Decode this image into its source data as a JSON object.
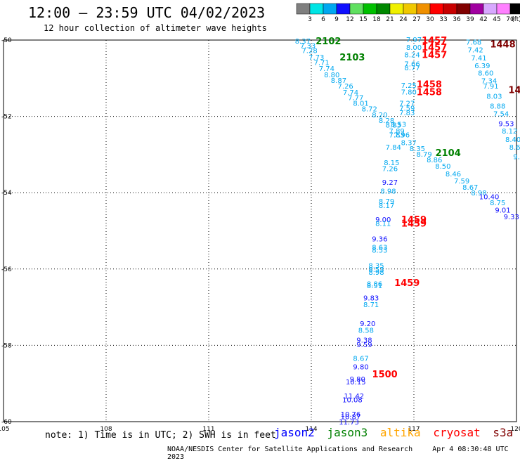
{
  "chart_data": {
    "type": "scatter",
    "title": "12:00 — 23:59 UTC 04/02/2023",
    "subtitle": "12 hour collection of altimeter wave heights",
    "x_ticks": [
      "105",
      "108",
      "111",
      "114",
      "117",
      "120"
    ],
    "y_ticks": [
      "-50",
      "-52",
      "-54",
      "-56",
      "-58",
      "-60"
    ],
    "xlim": [
      105,
      120
    ],
    "ylim": [
      -60,
      -50
    ],
    "colorbar": {
      "labels": [
        "3",
        "6",
        "9",
        "12",
        "15",
        "18",
        "21",
        "24",
        "27",
        "30",
        "33",
        "36",
        "39",
        "42",
        "45",
        "70"
      ],
      "unit": "(ft)",
      "colors": [
        "#7f7f7f",
        "#00e5e5",
        "#00a8f0",
        "#1010ff",
        "#60e060",
        "#00c000",
        "#008800",
        "#f0f000",
        "#f0c800",
        "#f09000",
        "#ff0000",
        "#c80000",
        "#800000",
        "#a000a0",
        "#d8a8ff",
        "#ff80ff",
        "#000000"
      ]
    },
    "series": [
      {
        "name": "jason2",
        "color": "#0000ff"
      },
      {
        "name": "jason3",
        "color": "#008000"
      },
      {
        "name": "altika",
        "color": "#ffa500"
      },
      {
        "name": "cryosat",
        "color": "#ff0000"
      },
      {
        "name": "s3a",
        "color": "#800000"
      }
    ],
    "times": [
      {
        "text": "2102",
        "x": 114.5,
        "y": -50.02,
        "color": "#008000"
      },
      {
        "text": "2103",
        "x": 115.2,
        "y": -50.44,
        "color": "#008000"
      },
      {
        "text": "2104",
        "x": 118.0,
        "y": -52.95,
        "color": "#008000"
      },
      {
        "text": "1457",
        "x": 117.6,
        "y": -50.0,
        "color": "#ff0000"
      },
      {
        "text": "1457",
        "x": 117.6,
        "y": -50.18,
        "color": "#ff0000"
      },
      {
        "text": "1457",
        "x": 117.6,
        "y": -50.38,
        "color": "#ff0000"
      },
      {
        "text": "1458",
        "x": 117.45,
        "y": -51.15,
        "color": "#ff0000"
      },
      {
        "text": "1458",
        "x": 117.45,
        "y": -51.35,
        "color": "#ff0000"
      },
      {
        "text": "1459",
        "x": 117.0,
        "y": -54.7,
        "color": "#ff0000"
      },
      {
        "text": "1459",
        "x": 117.0,
        "y": -54.8,
        "color": "#ff0000"
      },
      {
        "text": "1459",
        "x": 116.8,
        "y": -56.35,
        "color": "#ff0000"
      },
      {
        "text": "1500",
        "x": 116.15,
        "y": -58.75,
        "color": "#ff0000"
      },
      {
        "text": "1448",
        "x": 119.6,
        "y": -50.1,
        "color": "#800000"
      },
      {
        "text": "14",
        "x": 119.95,
        "y": -51.3,
        "color": "#800000"
      }
    ],
    "points": [
      {
        "v": "8.37",
        "x": 113.75,
        "y": -50.02,
        "c": "#00a8f0"
      },
      {
        "v": "7.33",
        "x": 113.9,
        "y": -50.14,
        "c": "#00a8f0"
      },
      {
        "v": "7.28",
        "x": 113.95,
        "y": -50.27,
        "c": "#00a8f0"
      },
      {
        "v": "7.73",
        "x": 114.15,
        "y": -50.44,
        "c": "#00a8f0"
      },
      {
        "v": "7.71",
        "x": 114.3,
        "y": -50.58,
        "c": "#00a8f0"
      },
      {
        "v": "7.74",
        "x": 114.45,
        "y": -50.74,
        "c": "#00a8f0"
      },
      {
        "v": "8.80",
        "x": 114.6,
        "y": -50.9,
        "c": "#00a8f0"
      },
      {
        "v": "8.87",
        "x": 114.8,
        "y": -51.05,
        "c": "#00a8f0"
      },
      {
        "v": "7.26",
        "x": 115.0,
        "y": -51.2,
        "c": "#00a8f0"
      },
      {
        "v": "7.74",
        "x": 115.15,
        "y": -51.36,
        "c": "#00a8f0"
      },
      {
        "v": "7.77",
        "x": 115.3,
        "y": -51.5,
        "c": "#00a8f0"
      },
      {
        "v": "8.01",
        "x": 115.45,
        "y": -51.65,
        "c": "#00a8f0"
      },
      {
        "v": "8.72",
        "x": 115.7,
        "y": -51.8,
        "c": "#00a8f0"
      },
      {
        "v": "8.20",
        "x": 116.0,
        "y": -51.95,
        "c": "#00a8f0"
      },
      {
        "v": "8.28",
        "x": 116.2,
        "y": -52.1,
        "c": "#00a8f0"
      },
      {
        "v": "8.83",
        "x": 116.4,
        "y": -52.22,
        "c": "#00a8f0"
      },
      {
        "v": "7.89",
        "x": 116.5,
        "y": -52.38,
        "c": "#00a8f0"
      },
      {
        "v": "7.96",
        "x": 116.65,
        "y": -52.48,
        "c": "#00a8f0"
      },
      {
        "v": "8.37",
        "x": 116.85,
        "y": -52.68,
        "c": "#00a8f0"
      },
      {
        "v": "8.35",
        "x": 117.1,
        "y": -52.84,
        "c": "#00a8f0"
      },
      {
        "v": "8.79",
        "x": 117.3,
        "y": -52.98,
        "c": "#00a8f0"
      },
      {
        "v": "8.86",
        "x": 117.6,
        "y": -53.13,
        "c": "#00a8f0"
      },
      {
        "v": "8.50",
        "x": 117.85,
        "y": -53.3,
        "c": "#00a8f0"
      },
      {
        "v": "8.46",
        "x": 118.15,
        "y": -53.5,
        "c": "#00a8f0"
      },
      {
        "v": "7.59",
        "x": 118.4,
        "y": -53.68,
        "c": "#00a8f0"
      },
      {
        "v": "8.67",
        "x": 118.65,
        "y": -53.85,
        "c": "#00a8f0"
      },
      {
        "v": "8.98",
        "x": 118.9,
        "y": -54.0,
        "c": "#00a8f0"
      },
      {
        "v": "10.40",
        "x": 119.2,
        "y": -54.1,
        "c": "#1010ff"
      },
      {
        "v": "8.75",
        "x": 119.45,
        "y": -54.25,
        "c": "#00a8f0"
      },
      {
        "v": "9.01",
        "x": 119.6,
        "y": -54.45,
        "c": "#1010ff"
      },
      {
        "v": "9.33",
        "x": 119.85,
        "y": -54.62,
        "c": "#1010ff"
      },
      {
        "v": "7.97",
        "x": 117.0,
        "y": -49.98,
        "c": "#00a8f0"
      },
      {
        "v": "8.00",
        "x": 117.0,
        "y": -50.18,
        "c": "#00a8f0"
      },
      {
        "v": "8.24",
        "x": 116.95,
        "y": -50.38,
        "c": "#00a8f0"
      },
      {
        "v": "7.66",
        "x": 116.95,
        "y": -50.62,
        "c": "#00a8f0"
      },
      {
        "v": "8.77",
        "x": 116.95,
        "y": -50.72,
        "c": "#00a8f0"
      },
      {
        "v": "7.25",
        "x": 116.85,
        "y": -51.18,
        "c": "#00a8f0"
      },
      {
        "v": "7.80",
        "x": 116.85,
        "y": -51.35,
        "c": "#00a8f0"
      },
      {
        "v": "7.27",
        "x": 116.8,
        "y": -51.65,
        "c": "#00a8f0"
      },
      {
        "v": "7.59",
        "x": 116.8,
        "y": -51.78,
        "c": "#00a8f0"
      },
      {
        "v": "7.83",
        "x": 116.8,
        "y": -51.9,
        "c": "#00a8f0"
      },
      {
        "v": "8.53",
        "x": 116.55,
        "y": -52.2,
        "c": "#00a8f0"
      },
      {
        "v": "7.83",
        "x": 116.5,
        "y": -52.48,
        "c": "#00a8f0"
      },
      {
        "v": "7.84",
        "x": 116.4,
        "y": -52.8,
        "c": "#00a8f0"
      },
      {
        "v": "8.15",
        "x": 116.35,
        "y": -53.2,
        "c": "#00a8f0"
      },
      {
        "v": "7.26",
        "x": 116.3,
        "y": -53.36,
        "c": "#00a8f0"
      },
      {
        "v": "9.27",
        "x": 116.3,
        "y": -53.72,
        "c": "#1010ff"
      },
      {
        "v": "8.98",
        "x": 116.25,
        "y": -53.95,
        "c": "#00a8f0"
      },
      {
        "v": "8.79",
        "x": 116.2,
        "y": -54.22,
        "c": "#00a8f0"
      },
      {
        "v": "8.17",
        "x": 116.2,
        "y": -54.33,
        "c": "#00a8f0"
      },
      {
        "v": "9.00",
        "x": 116.1,
        "y": -54.7,
        "c": "#1010ff"
      },
      {
        "v": "8.11",
        "x": 116.1,
        "y": -54.8,
        "c": "#00a8f0"
      },
      {
        "v": "9.36",
        "x": 116.0,
        "y": -55.2,
        "c": "#1010ff"
      },
      {
        "v": "8.63",
        "x": 116.0,
        "y": -55.42,
        "c": "#00a8f0"
      },
      {
        "v": "8.53",
        "x": 116.0,
        "y": -55.5,
        "c": "#00a8f0"
      },
      {
        "v": "8.35",
        "x": 115.9,
        "y": -55.9,
        "c": "#00a8f0"
      },
      {
        "v": "8.53",
        "x": 115.9,
        "y": -56.0,
        "c": "#00a8f0"
      },
      {
        "v": "8.98",
        "x": 115.9,
        "y": -56.08,
        "c": "#00a8f0"
      },
      {
        "v": "8.86",
        "x": 115.85,
        "y": -56.38,
        "c": "#00a8f0"
      },
      {
        "v": "8.91",
        "x": 115.85,
        "y": -56.43,
        "c": "#00a8f0"
      },
      {
        "v": "9.83",
        "x": 115.75,
        "y": -56.75,
        "c": "#1010ff"
      },
      {
        "v": "8.71",
        "x": 115.75,
        "y": -56.92,
        "c": "#00a8f0"
      },
      {
        "v": "9.20",
        "x": 115.65,
        "y": -57.42,
        "c": "#1010ff"
      },
      {
        "v": "8.58",
        "x": 115.6,
        "y": -57.6,
        "c": "#00a8f0"
      },
      {
        "v": "9.38",
        "x": 115.55,
        "y": -57.85,
        "c": "#1010ff"
      },
      {
        "v": "9.59",
        "x": 115.55,
        "y": -57.97,
        "c": "#1010ff"
      },
      {
        "v": "8.67",
        "x": 115.45,
        "y": -58.33,
        "c": "#00a8f0"
      },
      {
        "v": "9.80",
        "x": 115.45,
        "y": -58.55,
        "c": "#1010ff"
      },
      {
        "v": "9.80",
        "x": 115.35,
        "y": -58.88,
        "c": "#1010ff"
      },
      {
        "v": "10.15",
        "x": 115.3,
        "y": -58.95,
        "c": "#1010ff"
      },
      {
        "v": "11.42",
        "x": 115.25,
        "y": -59.32,
        "c": "#1010ff"
      },
      {
        "v": "10.08",
        "x": 115.2,
        "y": -59.42,
        "c": "#1010ff"
      },
      {
        "v": "10.76",
        "x": 115.15,
        "y": -59.8,
        "c": "#1010ff"
      },
      {
        "v": "10.87",
        "x": 115.15,
        "y": -59.86,
        "c": "#1010ff"
      },
      {
        "v": "11.73",
        "x": 115.1,
        "y": -60.0,
        "c": "#1010ff"
      },
      {
        "v": "7.68",
        "x": 118.75,
        "y": -50.05,
        "c": "#00a8f0"
      },
      {
        "v": "7.42",
        "x": 118.8,
        "y": -50.25,
        "c": "#00a8f0"
      },
      {
        "v": "7.41",
        "x": 118.9,
        "y": -50.46,
        "c": "#00a8f0"
      },
      {
        "v": "6.39",
        "x": 119.0,
        "y": -50.66,
        "c": "#00a8f0"
      },
      {
        "v": "8.60",
        "x": 119.1,
        "y": -50.86,
        "c": "#00a8f0"
      },
      {
        "v": "7.34",
        "x": 119.2,
        "y": -51.06,
        "c": "#00a8f0"
      },
      {
        "v": "7.91",
        "x": 119.25,
        "y": -51.2,
        "c": "#00a8f0"
      },
      {
        "v": "8.03",
        "x": 119.35,
        "y": -51.46,
        "c": "#00a8f0"
      },
      {
        "v": "8.88",
        "x": 119.45,
        "y": -51.72,
        "c": "#00a8f0"
      },
      {
        "v": "7.54",
        "x": 119.55,
        "y": -51.92,
        "c": "#00a8f0"
      },
      {
        "v": "9.53",
        "x": 119.7,
        "y": -52.18,
        "c": "#1010ff"
      },
      {
        "v": "8.12",
        "x": 119.8,
        "y": -52.38,
        "c": "#00a8f0"
      },
      {
        "v": "8.40",
        "x": 119.9,
        "y": -52.6,
        "c": "#00a8f0"
      },
      {
        "v": "8.6",
        "x": 119.95,
        "y": -52.8,
        "c": "#00a8f0"
      },
      {
        "v": "9.",
        "x": 120.0,
        "y": -53.05,
        "c": "#00a8f0"
      }
    ]
  },
  "note": "note: 1) Time is in UTC; 2) SWH is in feet",
  "footer": {
    "credit": "NOAA/NESDIS Center for Satellite Applications and Research",
    "timestamp": "Apr  4 08:30:48 UTC 2023"
  }
}
